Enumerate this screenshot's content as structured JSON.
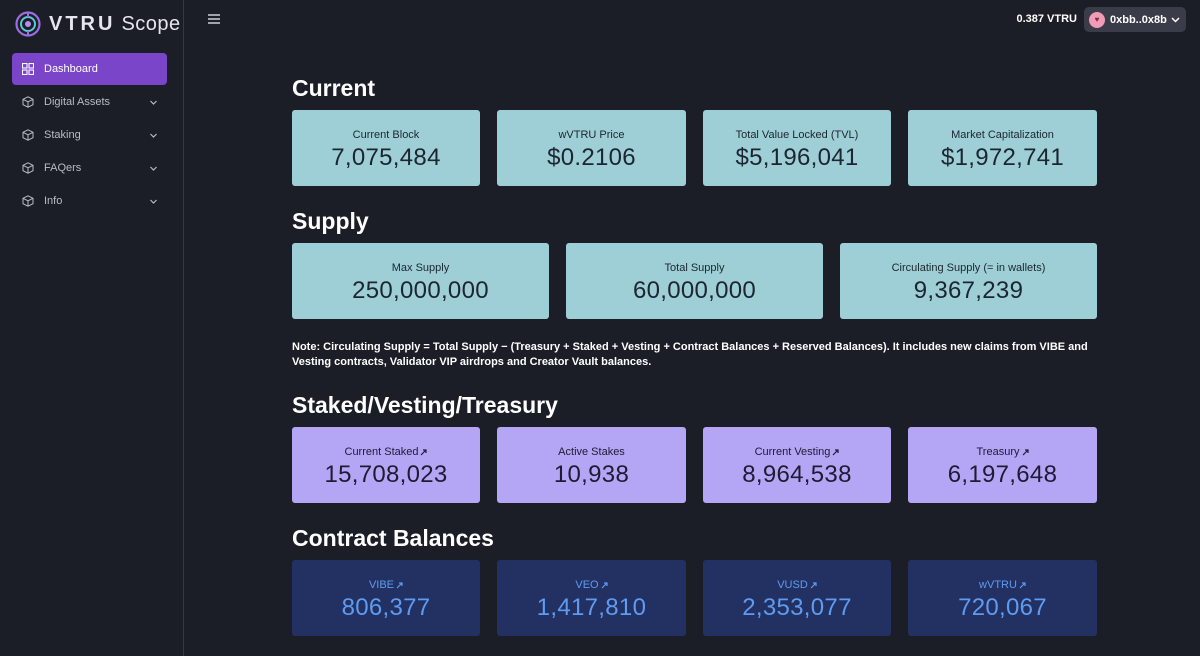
{
  "app": {
    "brand_strong": "VTRU",
    "brand_light": "Scope"
  },
  "sidebar": {
    "items": [
      {
        "label": "Dashboard",
        "icon": "dashboard-icon",
        "active": true
      },
      {
        "label": "Digital Assets",
        "icon": "cube-icon",
        "active": false
      },
      {
        "label": "Staking",
        "icon": "cube-icon",
        "active": false
      },
      {
        "label": "FAQers",
        "icon": "cube-icon",
        "active": false
      },
      {
        "label": "Info",
        "icon": "cube-icon",
        "active": false
      }
    ]
  },
  "topbar": {
    "balance": "0.387 VTRU",
    "wallet_address": "0xbb..0x8b"
  },
  "sections": {
    "current": {
      "title": "Current",
      "cards": [
        {
          "label": "Current Block",
          "value": "7,075,484"
        },
        {
          "label": "wVTRU Price",
          "value": "$0.2106"
        },
        {
          "label": "Total Value Locked (TVL)",
          "value": "$5,196,041"
        },
        {
          "label": "Market Capitalization",
          "value": "$1,972,741"
        }
      ]
    },
    "supply": {
      "title": "Supply",
      "cards": [
        {
          "label": "Max Supply",
          "value": "250,000,000"
        },
        {
          "label": "Total Supply",
          "value": "60,000,000"
        },
        {
          "label": "Circulating Supply (= in wallets)",
          "value": "9,367,239"
        }
      ],
      "note": "Note: Circulating Supply = Total Supply − (Treasury + Staked + Vesting + Contract Balances + Reserved Balances). It includes new claims from VIBE and Vesting contracts, Validator VIP airdrops and Creator Vault balances."
    },
    "staked": {
      "title": "Staked/Vesting/Treasury",
      "cards": [
        {
          "label": "Current Staked",
          "value": "15,708,023",
          "link": true
        },
        {
          "label": "Active Stakes",
          "value": "10,938",
          "link": false
        },
        {
          "label": "Current Vesting",
          "value": "8,964,538",
          "link": true
        },
        {
          "label": "Treasury",
          "value": "6,197,648",
          "link": true
        }
      ]
    },
    "contracts": {
      "title": "Contract Balances",
      "cards": [
        {
          "label": "VIBE",
          "value": "806,377",
          "link": true
        },
        {
          "label": "VEO",
          "value": "1,417,810",
          "link": true
        },
        {
          "label": "VUSD",
          "value": "2,353,077",
          "link": true
        },
        {
          "label": "wVTRU",
          "value": "720,067",
          "link": true
        }
      ]
    }
  },
  "colors": {
    "background": "#1b1d27",
    "accent": "#7b45c9",
    "teal_card": "#9ecfd6",
    "lavender_card": "#b4a6f5",
    "navy_card": "#223161",
    "navy_text": "#5e9bf2"
  }
}
